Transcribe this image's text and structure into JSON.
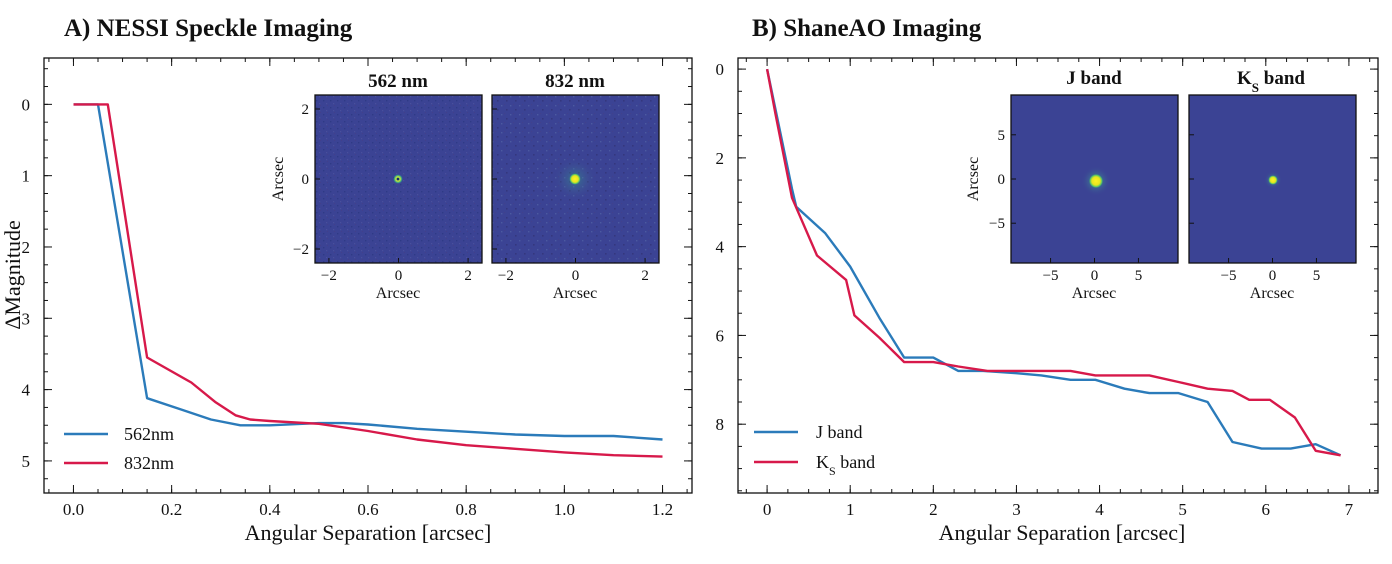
{
  "colors": {
    "blue": "#2b7bba",
    "red": "#d7194a",
    "field": "#3b4394",
    "core": "#f5f01e",
    "halo": "#21a88a"
  },
  "chart_data": [
    {
      "panel": "A",
      "type": "line",
      "title": "A) NESSI Speckle Imaging",
      "xlabel": "Angular Separation [arcsec]",
      "ylabel": "ΔMagnitude",
      "xlim": [
        -0.06,
        1.26
      ],
      "ylim": [
        5.45,
        -0.65
      ],
      "y_inverted": true,
      "xticks": [
        0.0,
        0.2,
        0.4,
        0.6,
        0.8,
        1.0,
        1.2
      ],
      "xtick_labels": [
        "0.0",
        "0.2",
        "0.4",
        "0.6",
        "0.8",
        "1.0",
        "1.2"
      ],
      "yticks": [
        0,
        1,
        2,
        3,
        4,
        5
      ],
      "ytick_labels": [
        "0",
        "1",
        "2",
        "3",
        "4",
        "5"
      ],
      "legend_position": "lower-left",
      "series": [
        {
          "name": "562nm",
          "color": "#2b7bba",
          "x": [
            0.0,
            0.05,
            0.15,
            0.22,
            0.28,
            0.34,
            0.4,
            0.5,
            0.55,
            0.6,
            0.7,
            0.8,
            0.9,
            1.0,
            1.1,
            1.2
          ],
          "y": [
            0.0,
            0.0,
            4.12,
            4.28,
            4.42,
            4.5,
            4.5,
            4.47,
            4.47,
            4.49,
            4.55,
            4.59,
            4.63,
            4.65,
            4.65,
            4.7
          ]
        },
        {
          "name": "832nm",
          "color": "#d7194a",
          "x": [
            0.0,
            0.07,
            0.15,
            0.24,
            0.29,
            0.33,
            0.36,
            0.4,
            0.5,
            0.6,
            0.7,
            0.8,
            0.9,
            1.0,
            1.1,
            1.2
          ],
          "y": [
            0.0,
            0.0,
            3.55,
            3.9,
            4.18,
            4.36,
            4.42,
            4.44,
            4.48,
            4.58,
            4.7,
            4.78,
            4.83,
            4.88,
            4.92,
            4.94
          ]
        }
      ],
      "insets": [
        {
          "title": "562 nm",
          "xlabel": "Arcsec",
          "ylabel": "Arcsec",
          "lim": [
            -2.4,
            2.4
          ],
          "xtick_labels": [
            "−2",
            "0",
            "2"
          ],
          "ytick_labels": [
            "2",
            "0",
            "−2"
          ],
          "source": "ring"
        },
        {
          "title": "832 nm",
          "xlabel": "Arcsec",
          "ylabel": "",
          "lim": [
            -2.4,
            2.4
          ],
          "xtick_labels": [
            "−2",
            "0",
            "2"
          ],
          "ytick_labels": [],
          "source": "bright"
        }
      ]
    },
    {
      "panel": "B",
      "type": "line",
      "title": "B) ShaneAO Imaging",
      "xlabel": "Angular Separation [arcsec]",
      "ylabel": "",
      "xlim": [
        -0.35,
        7.35
      ],
      "ylim": [
        9.55,
        -0.25
      ],
      "y_inverted": true,
      "xticks": [
        0,
        1,
        2,
        3,
        4,
        5,
        6,
        7
      ],
      "xtick_labels": [
        "0",
        "1",
        "2",
        "3",
        "4",
        "5",
        "6",
        "7"
      ],
      "yticks": [
        0,
        2,
        4,
        6,
        8
      ],
      "ytick_labels": [
        "0",
        "2",
        "4",
        "6",
        "8"
      ],
      "legend_position": "lower-left",
      "series": [
        {
          "name": "J band",
          "color": "#2b7bba",
          "x": [
            0.0,
            0.1,
            0.3,
            0.35,
            0.7,
            1.0,
            1.35,
            1.65,
            2.0,
            2.3,
            2.6,
            3.0,
            3.3,
            3.65,
            3.95,
            4.3,
            4.6,
            4.95,
            5.3,
            5.6,
            5.95,
            6.3,
            6.6,
            6.9
          ],
          "y": [
            0.0,
            0.9,
            2.7,
            3.1,
            3.7,
            4.45,
            5.6,
            6.5,
            6.5,
            6.8,
            6.8,
            6.85,
            6.9,
            7.0,
            7.0,
            7.2,
            7.3,
            7.3,
            7.5,
            8.4,
            8.55,
            8.55,
            8.45,
            8.7
          ]
        },
        {
          "name": "Kₛ band",
          "color": "#d7194a",
          "x": [
            0.0,
            0.1,
            0.3,
            0.6,
            0.95,
            1.05,
            1.35,
            1.65,
            2.0,
            2.3,
            2.65,
            3.0,
            3.3,
            3.65,
            3.95,
            4.3,
            4.6,
            4.95,
            5.3,
            5.6,
            5.8,
            6.05,
            6.35,
            6.6,
            6.9
          ],
          "y": [
            0.0,
            1.0,
            2.9,
            4.2,
            4.75,
            5.55,
            6.05,
            6.6,
            6.6,
            6.7,
            6.8,
            6.8,
            6.8,
            6.8,
            6.9,
            6.9,
            6.9,
            7.05,
            7.2,
            7.25,
            7.45,
            7.45,
            7.85,
            8.6,
            8.7
          ]
        }
      ],
      "insets": [
        {
          "title": "J band",
          "xlabel": "Arcsec",
          "ylabel": "Arcsec",
          "lim": [
            -9.5,
            9.5
          ],
          "xtick_labels": [
            "−5",
            "0",
            "5"
          ],
          "ytick_labels": [
            "5",
            "0",
            "−5"
          ],
          "source": "large"
        },
        {
          "title": "Ks band",
          "xlabel": "Arcsec",
          "ylabel": "",
          "lim": [
            -9.5,
            9.5
          ],
          "xtick_labels": [
            "−5",
            "0",
            "5"
          ],
          "ytick_labels": [],
          "source": "small"
        }
      ]
    }
  ]
}
